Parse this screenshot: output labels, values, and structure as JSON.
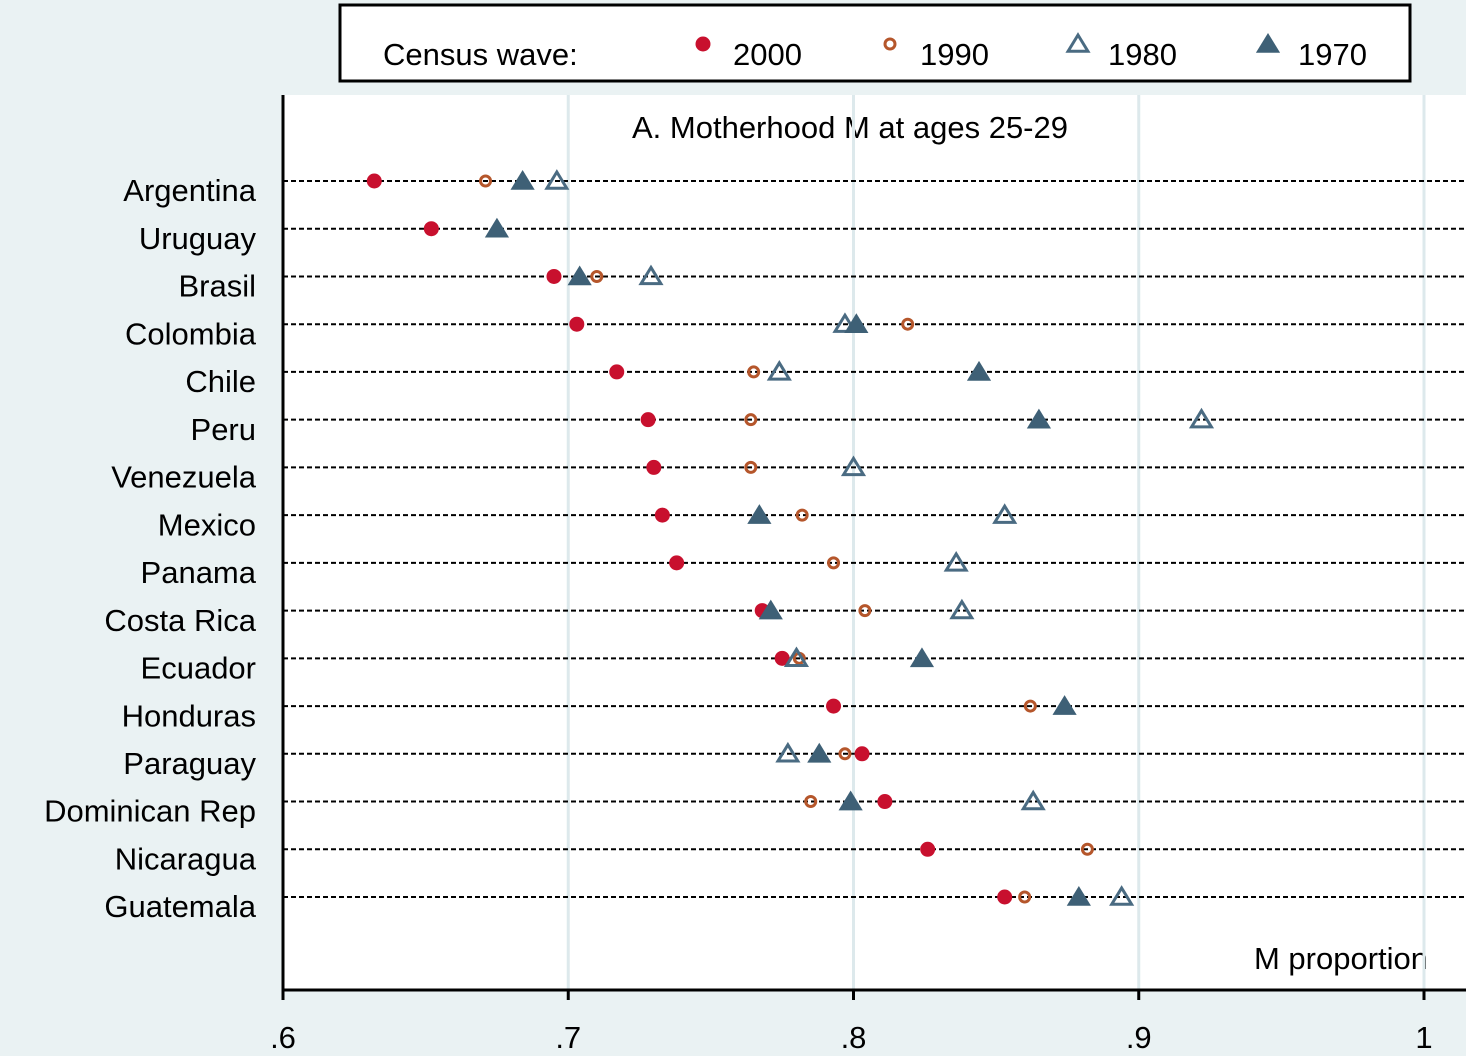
{
  "chart_data": {
    "type": "dot",
    "title": "A. Motherhood M at ages 25-29",
    "x_label": "M proportion",
    "legend_title": "Census wave:",
    "categories": [
      "Argentina",
      "Uruguay",
      "Brasil",
      "Colombia",
      "Chile",
      "Peru",
      "Venezuela",
      "Mexico",
      "Panama",
      "Costa Rica",
      "Ecuador",
      "Honduras",
      "Paraguay",
      "Dominican Rep",
      "Nicaragua",
      "Guatemala"
    ],
    "series": [
      {
        "name": "2000",
        "color": "#c8102e",
        "marker": "filled-circle",
        "values": [
          0.632,
          0.652,
          0.695,
          0.703,
          0.717,
          0.728,
          0.73,
          0.733,
          0.738,
          0.768,
          0.775,
          0.793,
          0.803,
          0.811,
          0.826,
          0.853
        ]
      },
      {
        "name": "1990",
        "color": "#b5562b",
        "marker": "hollow-circle",
        "values": [
          0.671,
          null,
          0.71,
          0.819,
          0.765,
          0.764,
          0.764,
          0.782,
          0.793,
          0.804,
          0.781,
          0.862,
          0.797,
          0.785,
          0.882,
          0.86
        ]
      },
      {
        "name": "1980",
        "color": "#4a6b82",
        "marker": "hollow-triangle",
        "values": [
          0.696,
          null,
          0.729,
          0.797,
          0.774,
          0.922,
          0.8,
          0.853,
          0.836,
          0.838,
          0.78,
          null,
          0.777,
          0.863,
          null,
          0.894
        ]
      },
      {
        "name": "1970",
        "color": "#3e6076",
        "marker": "filled-triangle",
        "values": [
          0.684,
          0.675,
          0.704,
          0.801,
          0.844,
          0.865,
          null,
          0.767,
          null,
          0.771,
          0.824,
          0.874,
          0.788,
          0.799,
          null,
          0.879
        ]
      }
    ],
    "xlim": [
      0.6,
      1.0
    ],
    "xticks": [
      {
        "value": 0.6,
        "label": ".6"
      },
      {
        "value": 0.7,
        "label": ".7"
      },
      {
        "value": 0.8,
        "label": ".8"
      },
      {
        "value": 0.9,
        "label": ".9"
      },
      1
    ],
    "grid": true
  }
}
